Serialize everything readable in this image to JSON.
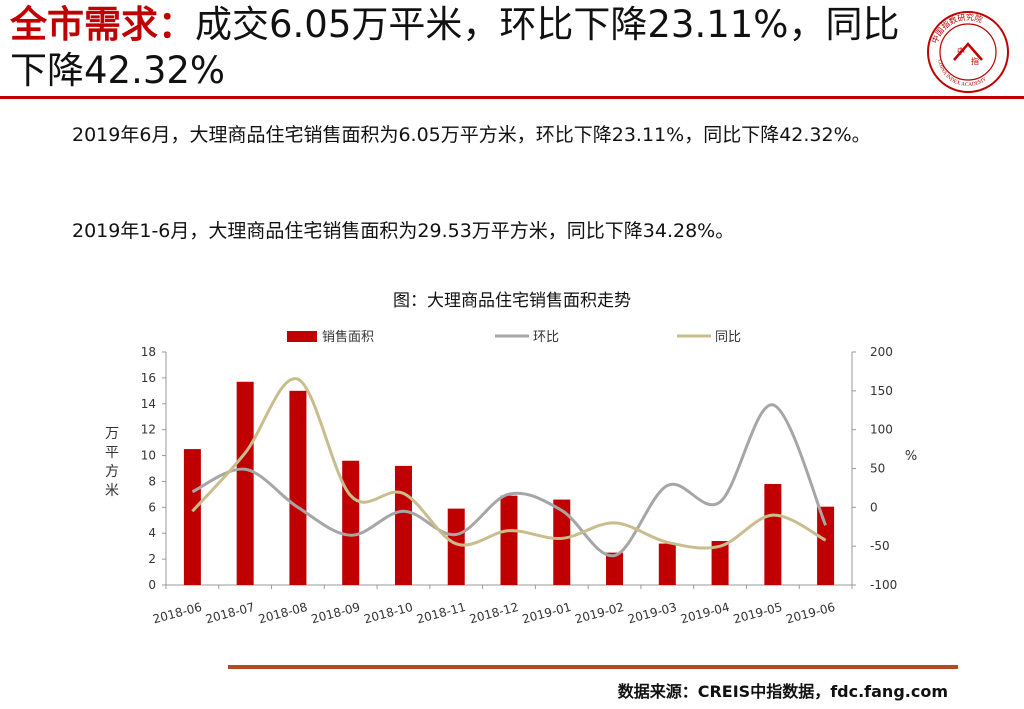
{
  "header": {
    "title_highlight": "全市需求：",
    "title_rest": "成交6.05万平米，环比下降23.11%，同比下降42.32%"
  },
  "logo": {
    "center_char_1": "中",
    "center_char_2": "指",
    "ring_cn": "中国指数研究院",
    "ring_en": "CHINA INDEX ACADEMY"
  },
  "body": {
    "para1": "2019年6月，大理商品住宅销售面积为6.05万平方米，环比下降23.11%，同比下降42.32%。",
    "para2": "2019年1-6月，大理商品住宅销售面积为29.53万平方米，同比下降34.28%。"
  },
  "chart_data": {
    "type": "bar",
    "title": "图：大理商品住宅销售面积走势",
    "categories": [
      "2018-06",
      "2018-07",
      "2018-08",
      "2018-09",
      "2018-10",
      "2018-11",
      "2018-12",
      "2019-01",
      "2019-02",
      "2019-03",
      "2019-04",
      "2019-05",
      "2019-06"
    ],
    "series": [
      {
        "name": "销售面积",
        "type": "bar",
        "axis": "left",
        "color": "#c00000",
        "values": [
          10.5,
          15.7,
          15.0,
          9.6,
          9.2,
          5.9,
          6.9,
          6.6,
          2.5,
          3.2,
          3.4,
          7.8,
          6.05
        ]
      },
      {
        "name": "环比",
        "type": "line",
        "axis": "right",
        "color": "#a6a6a6",
        "values": [
          20,
          49,
          0,
          -36,
          -5,
          -35,
          17,
          -4,
          -62,
          28,
          7,
          132,
          -23.11
        ]
      },
      {
        "name": "同比",
        "type": "line",
        "axis": "right",
        "color": "#c9bd8e",
        "values": [
          -5,
          70,
          165,
          15,
          18,
          -47,
          -30,
          -40,
          -20,
          -45,
          -50,
          -10,
          -42.32
        ]
      }
    ],
    "ylabel": "万平方米",
    "y2label": "%",
    "ylim": [
      0,
      18
    ],
    "yticks": [
      0,
      2,
      4,
      6,
      8,
      10,
      12,
      14,
      16,
      18
    ],
    "y2lim": [
      -100,
      200
    ],
    "y2ticks": [
      -100,
      -50,
      0,
      50,
      100,
      150,
      200
    ],
    "grid": false,
    "legend": "top"
  },
  "footer": {
    "source": "数据来源：CREIS中指数据，fdc.fang.com"
  },
  "colors": {
    "accent": "#c00000",
    "footer_rule": "#b34b1c"
  }
}
